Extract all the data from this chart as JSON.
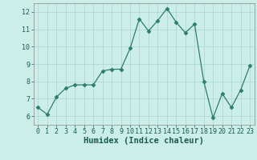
{
  "x": [
    0,
    1,
    2,
    3,
    4,
    5,
    6,
    7,
    8,
    9,
    10,
    11,
    12,
    13,
    14,
    15,
    16,
    17,
    18,
    19,
    20,
    21,
    22,
    23
  ],
  "y": [
    6.5,
    6.1,
    7.1,
    7.6,
    7.8,
    7.8,
    7.8,
    8.6,
    8.7,
    8.7,
    9.9,
    11.6,
    10.9,
    11.5,
    12.2,
    11.4,
    10.8,
    11.3,
    8.0,
    5.9,
    7.3,
    6.5,
    7.5,
    8.9
  ],
  "line_color": "#2d7d6e",
  "marker": "D",
  "marker_size": 2.5,
  "bg_color": "#cceee8",
  "grid_color": "#b0d8d2",
  "xlabel": "Humidex (Indice chaleur)",
  "xlabel_fontsize": 7.5,
  "tick_fontsize": 6,
  "xlim": [
    -0.5,
    23.5
  ],
  "ylim": [
    5.5,
    12.5
  ],
  "yticks": [
    6,
    7,
    8,
    9,
    10,
    11,
    12
  ],
  "xticks": [
    0,
    1,
    2,
    3,
    4,
    5,
    6,
    7,
    8,
    9,
    10,
    11,
    12,
    13,
    14,
    15,
    16,
    17,
    18,
    19,
    20,
    21,
    22,
    23
  ]
}
